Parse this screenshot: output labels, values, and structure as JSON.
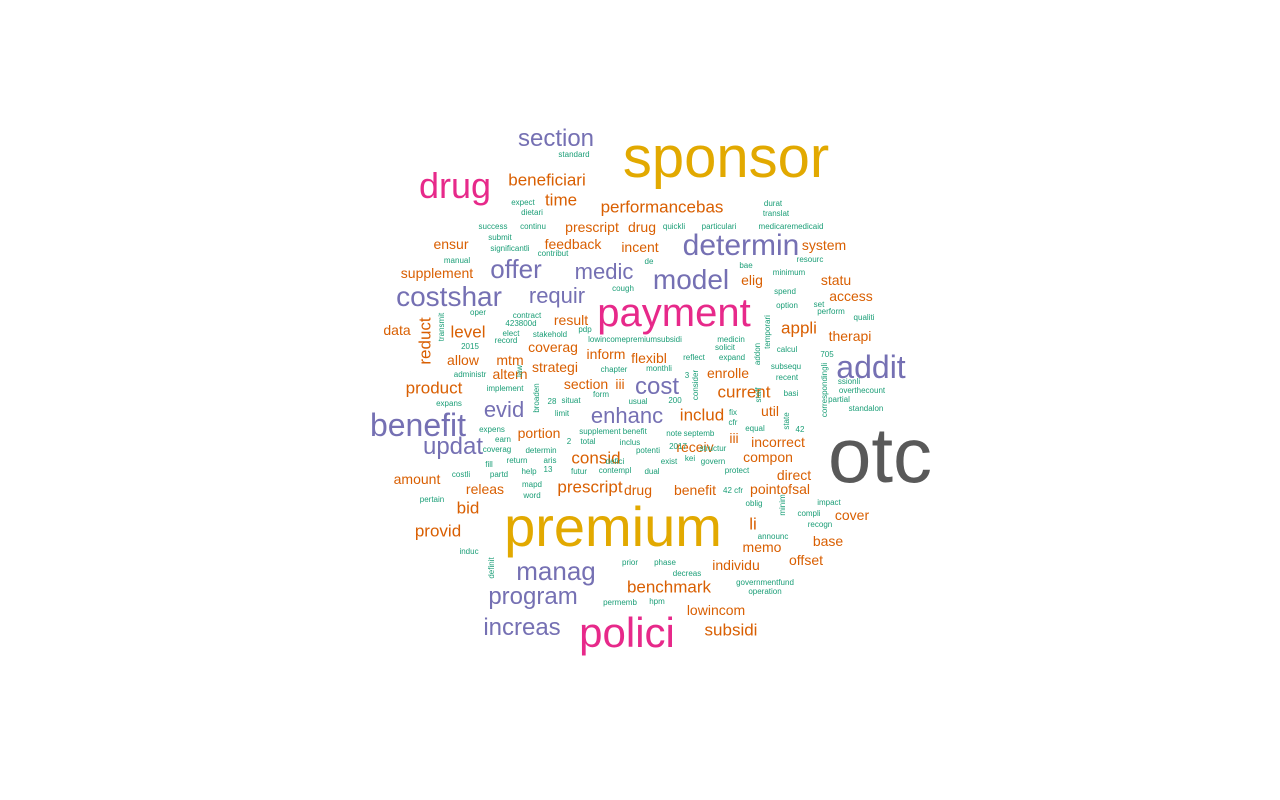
{
  "palette": {
    "gray": "#595959",
    "gold": "#e2a900",
    "pink": "#e7298a",
    "purple": "#7570b3",
    "orange": "#d95f02",
    "teal": "#1b9e77"
  },
  "words": [
    {
      "t": "otc",
      "c": "gray"
    },
    {
      "t": "sponsor",
      "c": "gold"
    },
    {
      "t": "premium",
      "c": "gold"
    },
    {
      "t": "payment",
      "c": "pink"
    },
    {
      "t": "polici",
      "c": "pink"
    },
    {
      "t": "drug",
      "c": "pink"
    },
    {
      "t": "costshar",
      "c": "purple"
    },
    {
      "t": "benefit",
      "c": "purple"
    },
    {
      "t": "addit",
      "c": "purple"
    },
    {
      "t": "determin",
      "c": "purple"
    },
    {
      "t": "model",
      "c": "purple"
    },
    {
      "t": "offer",
      "c": "purple"
    },
    {
      "t": "section",
      "c": "purple"
    },
    {
      "t": "manag",
      "c": "purple"
    },
    {
      "t": "program",
      "c": "purple"
    },
    {
      "t": "increas",
      "c": "purple"
    },
    {
      "t": "updat",
      "c": "purple"
    },
    {
      "t": "enhanc",
      "c": "purple"
    },
    {
      "t": "evid",
      "c": "purple"
    },
    {
      "t": "requir",
      "c": "purple"
    },
    {
      "t": "medic",
      "c": "purple"
    },
    {
      "t": "cost",
      "c": "purple"
    },
    {
      "t": "beneficiari",
      "c": "orange"
    },
    {
      "t": "time",
      "c": "orange"
    },
    {
      "t": "performancebas",
      "c": "orange"
    },
    {
      "t": "prescript",
      "c": "orange"
    },
    {
      "t": "drug",
      "c": "orange"
    },
    {
      "t": "feedback",
      "c": "orange"
    },
    {
      "t": "incent",
      "c": "orange"
    },
    {
      "t": "system",
      "c": "orange"
    },
    {
      "t": "ensur",
      "c": "orange"
    },
    {
      "t": "supplement",
      "c": "orange"
    },
    {
      "t": "elig",
      "c": "orange"
    },
    {
      "t": "statu",
      "c": "orange"
    },
    {
      "t": "access",
      "c": "orange"
    },
    {
      "t": "appli",
      "c": "orange"
    },
    {
      "t": "therapi",
      "c": "orange"
    },
    {
      "t": "data",
      "c": "orange"
    },
    {
      "t": "reduct",
      "c": "orange"
    },
    {
      "t": "level",
      "c": "orange"
    },
    {
      "t": "result",
      "c": "orange"
    },
    {
      "t": "coverag",
      "c": "orange"
    },
    {
      "t": "inform",
      "c": "orange"
    },
    {
      "t": "flexibl",
      "c": "orange"
    },
    {
      "t": "allow",
      "c": "orange"
    },
    {
      "t": "mtm",
      "c": "orange"
    },
    {
      "t": "strategi",
      "c": "orange"
    },
    {
      "t": "altern",
      "c": "orange"
    },
    {
      "t": "enrolle",
      "c": "orange"
    },
    {
      "t": "product",
      "c": "orange"
    },
    {
      "t": "section",
      "c": "orange"
    },
    {
      "t": "iii",
      "c": "orange"
    },
    {
      "t": "current",
      "c": "orange"
    },
    {
      "t": "includ",
      "c": "orange"
    },
    {
      "t": "util",
      "c": "orange"
    },
    {
      "t": "portion",
      "c": "orange"
    },
    {
      "t": "iii",
      "c": "orange"
    },
    {
      "t": "incorrect",
      "c": "orange"
    },
    {
      "t": "consid",
      "c": "orange"
    },
    {
      "t": "receiv",
      "c": "orange"
    },
    {
      "t": "compon",
      "c": "orange"
    },
    {
      "t": "direct",
      "c": "orange"
    },
    {
      "t": "amount",
      "c": "orange"
    },
    {
      "t": "releas",
      "c": "orange"
    },
    {
      "t": "prescript",
      "c": "orange"
    },
    {
      "t": "drug",
      "c": "orange"
    },
    {
      "t": "benefit",
      "c": "orange"
    },
    {
      "t": "pointofsal",
      "c": "orange"
    },
    {
      "t": "bid",
      "c": "orange"
    },
    {
      "t": "li",
      "c": "orange"
    },
    {
      "t": "cover",
      "c": "orange"
    },
    {
      "t": "provid",
      "c": "orange"
    },
    {
      "t": "memo",
      "c": "orange"
    },
    {
      "t": "base",
      "c": "orange"
    },
    {
      "t": "offset",
      "c": "orange"
    },
    {
      "t": "individu",
      "c": "orange"
    },
    {
      "t": "benchmark",
      "c": "orange"
    },
    {
      "t": "lowincom",
      "c": "orange"
    },
    {
      "t": "subsidi",
      "c": "orange"
    },
    {
      "t": "standard",
      "c": "teal"
    },
    {
      "t": "expect",
      "c": "teal"
    },
    {
      "t": "dietari",
      "c": "teal"
    },
    {
      "t": "success",
      "c": "teal"
    },
    {
      "t": "continu",
      "c": "teal"
    },
    {
      "t": "submit",
      "c": "teal"
    },
    {
      "t": "significantli",
      "c": "teal"
    },
    {
      "t": "contribut",
      "c": "teal"
    },
    {
      "t": "manual",
      "c": "teal"
    },
    {
      "t": "de",
      "c": "teal"
    },
    {
      "t": "quickli",
      "c": "teal"
    },
    {
      "t": "particulari",
      "c": "teal"
    },
    {
      "t": "durat",
      "c": "teal"
    },
    {
      "t": "translat",
      "c": "teal"
    },
    {
      "t": "medicaremedicaid",
      "c": "teal"
    },
    {
      "t": "bae",
      "c": "teal"
    },
    {
      "t": "minimum",
      "c": "teal"
    },
    {
      "t": "resourc",
      "c": "teal"
    },
    {
      "t": "cough",
      "c": "teal"
    },
    {
      "t": "spend",
      "c": "teal"
    },
    {
      "t": "option",
      "c": "teal"
    },
    {
      "t": "set",
      "c": "teal"
    },
    {
      "t": "perform",
      "c": "teal"
    },
    {
      "t": "qualiti",
      "c": "teal"
    },
    {
      "t": "oper",
      "c": "teal"
    },
    {
      "t": "contract",
      "c": "teal"
    },
    {
      "t": "423800d",
      "c": "teal"
    },
    {
      "t": "pdp",
      "c": "teal"
    },
    {
      "t": "elect",
      "c": "teal"
    },
    {
      "t": "stakehold",
      "c": "teal"
    },
    {
      "t": "record",
      "c": "teal"
    },
    {
      "t": "lowincomepremiumsubsidi",
      "c": "teal"
    },
    {
      "t": "medicin",
      "c": "teal"
    },
    {
      "t": "solicit",
      "c": "teal"
    },
    {
      "t": "calcul",
      "c": "teal"
    },
    {
      "t": "705",
      "c": "teal"
    },
    {
      "t": "2015",
      "c": "teal"
    },
    {
      "t": "administr",
      "c": "teal"
    },
    {
      "t": "chapter",
      "c": "teal"
    },
    {
      "t": "monthli",
      "c": "teal"
    },
    {
      "t": "reflect",
      "c": "teal"
    },
    {
      "t": "expand",
      "c": "teal"
    },
    {
      "t": "subsequ",
      "c": "teal"
    },
    {
      "t": "recent",
      "c": "teal"
    },
    {
      "t": "ssionli",
      "c": "teal"
    },
    {
      "t": "overthecount",
      "c": "teal"
    },
    {
      "t": "implement",
      "c": "teal"
    },
    {
      "t": "form",
      "c": "teal"
    },
    {
      "t": "usual",
      "c": "teal"
    },
    {
      "t": "200",
      "c": "teal"
    },
    {
      "t": "basi",
      "c": "teal"
    },
    {
      "t": "partial",
      "c": "teal"
    },
    {
      "t": "expans",
      "c": "teal"
    },
    {
      "t": "28",
      "c": "teal"
    },
    {
      "t": "situat",
      "c": "teal"
    },
    {
      "t": "limit",
      "c": "teal"
    },
    {
      "t": "fix",
      "c": "teal"
    },
    {
      "t": "cfr",
      "c": "teal"
    },
    {
      "t": "equal",
      "c": "teal"
    },
    {
      "t": "42",
      "c": "teal"
    },
    {
      "t": "standalon",
      "c": "teal"
    },
    {
      "t": "expens",
      "c": "teal"
    },
    {
      "t": "earn",
      "c": "teal"
    },
    {
      "t": "supplement benefit",
      "c": "teal"
    },
    {
      "t": "septemb",
      "c": "teal"
    },
    {
      "t": "note",
      "c": "teal"
    },
    {
      "t": "coverag",
      "c": "teal"
    },
    {
      "t": "determin",
      "c": "teal"
    },
    {
      "t": "2",
      "c": "teal"
    },
    {
      "t": "total",
      "c": "teal"
    },
    {
      "t": "inclus",
      "c": "teal"
    },
    {
      "t": "2017",
      "c": "teal"
    },
    {
      "t": "structur",
      "c": "teal"
    },
    {
      "t": "potenti",
      "c": "teal"
    },
    {
      "t": "fill",
      "c": "teal"
    },
    {
      "t": "return",
      "c": "teal"
    },
    {
      "t": "aris",
      "c": "teal"
    },
    {
      "t": "defici",
      "c": "teal"
    },
    {
      "t": "exist",
      "c": "teal"
    },
    {
      "t": "govern",
      "c": "teal"
    },
    {
      "t": "costli",
      "c": "teal"
    },
    {
      "t": "partd",
      "c": "teal"
    },
    {
      "t": "help",
      "c": "teal"
    },
    {
      "t": "13",
      "c": "teal"
    },
    {
      "t": "futur",
      "c": "teal"
    },
    {
      "t": "contempl",
      "c": "teal"
    },
    {
      "t": "dual",
      "c": "teal"
    },
    {
      "t": "protect",
      "c": "teal"
    },
    {
      "t": "mapd",
      "c": "teal"
    },
    {
      "t": "word",
      "c": "teal"
    },
    {
      "t": "42 cfr",
      "c": "teal"
    },
    {
      "t": "pertain",
      "c": "teal"
    },
    {
      "t": "oblig",
      "c": "teal"
    },
    {
      "t": "impact",
      "c": "teal"
    },
    {
      "t": "compli",
      "c": "teal"
    },
    {
      "t": "recogn",
      "c": "teal"
    },
    {
      "t": "announc",
      "c": "teal"
    },
    {
      "t": "induc",
      "c": "teal"
    },
    {
      "t": "prior",
      "c": "teal"
    },
    {
      "t": "phase",
      "c": "teal"
    },
    {
      "t": "decreas",
      "c": "teal"
    },
    {
      "t": "governmentfund",
      "c": "teal"
    },
    {
      "t": "operation",
      "c": "teal"
    },
    {
      "t": "permemb",
      "c": "teal"
    },
    {
      "t": "hpm",
      "c": "teal"
    },
    {
      "t": "transmit",
      "c": "teal"
    },
    {
      "t": "law",
      "c": "teal"
    },
    {
      "t": "broaden",
      "c": "teal"
    },
    {
      "t": "consider",
      "c": "teal"
    },
    {
      "t": "3",
      "c": "teal"
    },
    {
      "t": "addon",
      "c": "teal"
    },
    {
      "t": "temporari",
      "c": "teal"
    },
    {
      "t": "correspondingli",
      "c": "teal"
    },
    {
      "t": "staff",
      "c": "teal"
    },
    {
      "t": "state",
      "c": "teal"
    },
    {
      "t": "kei",
      "c": "teal"
    },
    {
      "t": "minim",
      "c": "teal"
    },
    {
      "t": "definit",
      "c": "teal"
    }
  ]
}
